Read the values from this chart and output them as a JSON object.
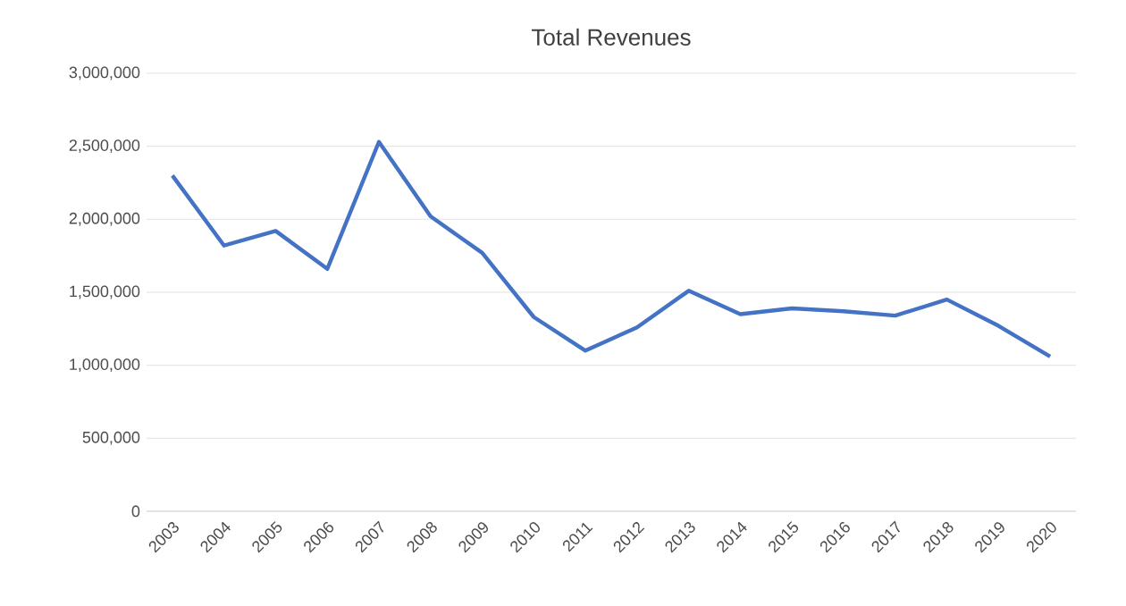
{
  "chart_data": {
    "type": "line",
    "title": "Total Revenues",
    "categories": [
      "2003",
      "2004",
      "2005",
      "2006",
      "2007",
      "2008",
      "2009",
      "2010",
      "2011",
      "2012",
      "2013",
      "2014",
      "2015",
      "2016",
      "2017",
      "2018",
      "2019",
      "2020"
    ],
    "series": [
      {
        "color": "#4472c4",
        "values": [
          2300000,
          1820000,
          1920000,
          1660000,
          2530000,
          2020000,
          1770000,
          1330000,
          1100000,
          1260000,
          1510000,
          1350000,
          1390000,
          1370000,
          1340000,
          1450000,
          1270000,
          1060000
        ]
      }
    ],
    "ylim": [
      0,
      3000000
    ],
    "yticks": [
      {
        "value": 0,
        "label": "0"
      },
      {
        "value": 500000,
        "label": "500,000"
      },
      {
        "value": 1000000,
        "label": "1,000,000"
      },
      {
        "value": 1500000,
        "label": "1,500,000"
      },
      {
        "value": 2000000,
        "label": "2,000,000"
      },
      {
        "value": 2500000,
        "label": "2,500,000"
      },
      {
        "value": 3000000,
        "label": "3,000,000"
      }
    ],
    "grid": "y",
    "marker": "none",
    "line_style": "solid"
  }
}
